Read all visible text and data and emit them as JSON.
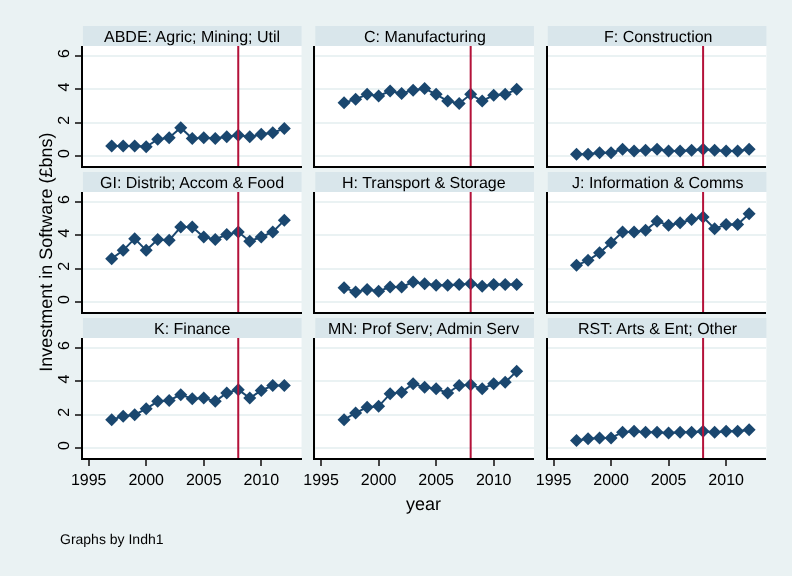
{
  "chart_data": [
    {
      "type": "line",
      "title": "ABDE: Agric; Mining; Util",
      "x": [
        1997,
        1998,
        1999,
        2000,
        2001,
        2002,
        2003,
        2004,
        2005,
        2006,
        2007,
        2008,
        2009,
        2010,
        2011,
        2012
      ],
      "series": [
        {
          "color": "#1a476f",
          "values": [
            0.6,
            0.6,
            0.6,
            0.55,
            1.0,
            1.1,
            1.7,
            1.05,
            1.1,
            1.05,
            1.15,
            1.25,
            1.15,
            1.3,
            1.4,
            1.65
          ]
        }
      ],
      "xlim": [
        1994.5,
        2013.5
      ],
      "ylim": [
        -0.6,
        6.6
      ],
      "xticks": [
        1995,
        2000,
        2005,
        2010
      ],
      "yticks": [
        0,
        2,
        4,
        6
      ],
      "ref_lines": [
        {
          "axis": "x",
          "value": 2008,
          "color": "#b4123a"
        }
      ],
      "grid": "y",
      "marker": "diamond",
      "tick_labels": "y"
    },
    {
      "type": "line",
      "title": "C: Manufacturing",
      "x": [
        1997,
        1998,
        1999,
        2000,
        2001,
        2002,
        2003,
        2004,
        2005,
        2006,
        2007,
        2008,
        2009,
        2010,
        2011,
        2012
      ],
      "series": [
        {
          "color": "#1a476f",
          "values": [
            3.2,
            3.4,
            3.7,
            3.6,
            3.9,
            3.75,
            3.95,
            4.05,
            3.7,
            3.3,
            3.15,
            3.7,
            3.3,
            3.65,
            3.7,
            4.0
          ]
        }
      ],
      "xlim": [
        1994.5,
        2013.5
      ],
      "ylim": [
        -0.6,
        6.6
      ],
      "xticks": [
        1995,
        2000,
        2005,
        2010
      ],
      "yticks": [
        0,
        2,
        4,
        6
      ],
      "ref_lines": [
        {
          "axis": "x",
          "value": 2008,
          "color": "#b4123a"
        }
      ],
      "grid": "y",
      "marker": "diamond",
      "tick_labels": false
    },
    {
      "type": "line",
      "title": "F: Construction",
      "x": [
        1997,
        1998,
        1999,
        2000,
        2001,
        2002,
        2003,
        2004,
        2005,
        2006,
        2007,
        2008,
        2009,
        2010,
        2011,
        2012
      ],
      "series": [
        {
          "color": "#1a476f",
          "values": [
            0.1,
            0.1,
            0.2,
            0.2,
            0.4,
            0.3,
            0.35,
            0.4,
            0.3,
            0.3,
            0.35,
            0.4,
            0.35,
            0.3,
            0.3,
            0.4
          ]
        }
      ],
      "xlim": [
        1994.5,
        2013.5
      ],
      "ylim": [
        -0.6,
        6.6
      ],
      "xticks": [
        1995,
        2000,
        2005,
        2010
      ],
      "yticks": [
        0,
        2,
        4,
        6
      ],
      "ref_lines": [
        {
          "axis": "x",
          "value": 2008,
          "color": "#b4123a"
        }
      ],
      "grid": "y",
      "marker": "diamond",
      "tick_labels": false
    },
    {
      "type": "line",
      "title": "GI: Distrib; Accom & Food",
      "ylabel": "Investment in Software (£bns)",
      "x": [
        1997,
        1998,
        1999,
        2000,
        2001,
        2002,
        2003,
        2004,
        2005,
        2006,
        2007,
        2008,
        2009,
        2010,
        2011,
        2012
      ],
      "series": [
        {
          "color": "#1a476f",
          "values": [
            2.6,
            3.1,
            3.8,
            3.1,
            3.75,
            3.7,
            4.5,
            4.5,
            3.9,
            3.75,
            4.05,
            4.2,
            3.65,
            3.9,
            4.2,
            4.9
          ]
        }
      ],
      "xlim": [
        1994.5,
        2013.5
      ],
      "ylim": [
        -0.6,
        6.6
      ],
      "xticks": [
        1995,
        2000,
        2005,
        2010
      ],
      "yticks": [
        0,
        2,
        4,
        6
      ],
      "ref_lines": [
        {
          "axis": "x",
          "value": 2008,
          "color": "#b4123a"
        }
      ],
      "grid": "y",
      "marker": "diamond",
      "tick_labels": "y"
    },
    {
      "type": "line",
      "title": "H: Transport & Storage",
      "x": [
        1997,
        1998,
        1999,
        2000,
        2001,
        2002,
        2003,
        2004,
        2005,
        2006,
        2007,
        2008,
        2009,
        2010,
        2011,
        2012
      ],
      "series": [
        {
          "color": "#1a476f",
          "values": [
            0.85,
            0.6,
            0.75,
            0.65,
            0.9,
            0.9,
            1.2,
            1.1,
            1.0,
            1.0,
            1.05,
            1.1,
            0.95,
            1.05,
            1.05,
            1.05
          ]
        }
      ],
      "xlim": [
        1994.5,
        2013.5
      ],
      "ylim": [
        -0.6,
        6.6
      ],
      "xticks": [
        1995,
        2000,
        2005,
        2010
      ],
      "yticks": [
        0,
        2,
        4,
        6
      ],
      "ref_lines": [
        {
          "axis": "x",
          "value": 2008,
          "color": "#b4123a"
        }
      ],
      "grid": "y",
      "marker": "diamond",
      "tick_labels": false
    },
    {
      "type": "line",
      "title": "J: Information & Comms",
      "x": [
        1997,
        1998,
        1999,
        2000,
        2001,
        2002,
        2003,
        2004,
        2005,
        2006,
        2007,
        2008,
        2009,
        2010,
        2011,
        2012
      ],
      "series": [
        {
          "color": "#1a476f",
          "values": [
            2.2,
            2.5,
            2.95,
            3.55,
            4.2,
            4.2,
            4.3,
            4.85,
            4.6,
            4.75,
            4.95,
            5.1,
            4.4,
            4.65,
            4.65,
            5.3
          ]
        }
      ],
      "xlim": [
        1994.5,
        2013.5
      ],
      "ylim": [
        -0.6,
        6.6
      ],
      "xticks": [
        1995,
        2000,
        2005,
        2010
      ],
      "yticks": [
        0,
        2,
        4,
        6
      ],
      "ref_lines": [
        {
          "axis": "x",
          "value": 2008,
          "color": "#b4123a"
        }
      ],
      "grid": "y",
      "marker": "diamond",
      "tick_labels": false
    },
    {
      "type": "line",
      "title": "K: Finance",
      "annotations": [
        "Graphs by Indh1"
      ],
      "x": [
        1997,
        1998,
        1999,
        2000,
        2001,
        2002,
        2003,
        2004,
        2005,
        2006,
        2007,
        2008,
        2009,
        2010,
        2011,
        2012
      ],
      "series": [
        {
          "color": "#1a476f",
          "values": [
            1.7,
            1.9,
            2.0,
            2.35,
            2.8,
            2.85,
            3.2,
            2.95,
            3.0,
            2.8,
            3.3,
            3.5,
            3.0,
            3.45,
            3.75,
            3.75
          ]
        }
      ],
      "xlim": [
        1994.5,
        2013.5
      ],
      "ylim": [
        -0.6,
        6.6
      ],
      "xticks": [
        1995,
        2000,
        2005,
        2010
      ],
      "yticks": [
        0,
        2,
        4,
        6
      ],
      "ref_lines": [
        {
          "axis": "x",
          "value": 2008,
          "color": "#b4123a"
        }
      ],
      "grid": "y",
      "marker": "diamond"
    },
    {
      "type": "line",
      "title": "MN: Prof Serv; Admin Serv",
      "xlabel": "year",
      "x": [
        1997,
        1998,
        1999,
        2000,
        2001,
        2002,
        2003,
        2004,
        2005,
        2006,
        2007,
        2008,
        2009,
        2010,
        2011,
        2012
      ],
      "series": [
        {
          "color": "#1a476f",
          "values": [
            1.7,
            2.1,
            2.45,
            2.5,
            3.25,
            3.35,
            3.85,
            3.65,
            3.55,
            3.3,
            3.75,
            3.8,
            3.55,
            3.85,
            3.95,
            4.6
          ]
        }
      ],
      "xlim": [
        1994.5,
        2013.5
      ],
      "ylim": [
        -0.6,
        6.6
      ],
      "xticks": [
        1995,
        2000,
        2005,
        2010
      ],
      "yticks": [
        0,
        2,
        4,
        6
      ],
      "ref_lines": [
        {
          "axis": "x",
          "value": 2008,
          "color": "#b4123a"
        }
      ],
      "grid": "y",
      "marker": "diamond",
      "tick_labels": "x"
    },
    {
      "type": "line",
      "title": "RST: Arts & Ent; Other",
      "x": [
        1997,
        1998,
        1999,
        2000,
        2001,
        2002,
        2003,
        2004,
        2005,
        2006,
        2007,
        2008,
        2009,
        2010,
        2011,
        2012
      ],
      "series": [
        {
          "color": "#1a476f",
          "values": [
            0.45,
            0.55,
            0.6,
            0.6,
            0.95,
            1.0,
            0.95,
            0.95,
            0.9,
            0.95,
            0.95,
            1.0,
            0.95,
            1.0,
            1.0,
            1.1
          ]
        }
      ],
      "xlim": [
        1994.5,
        2013.5
      ],
      "ylim": [
        -0.6,
        6.6
      ],
      "xticks": [
        1995,
        2000,
        2005,
        2010
      ],
      "yticks": [
        0,
        2,
        4,
        6
      ],
      "ref_lines": [
        {
          "axis": "x",
          "value": 2008,
          "color": "#b4123a"
        }
      ],
      "grid": "y",
      "marker": "diamond",
      "tick_labels": "x"
    }
  ]
}
